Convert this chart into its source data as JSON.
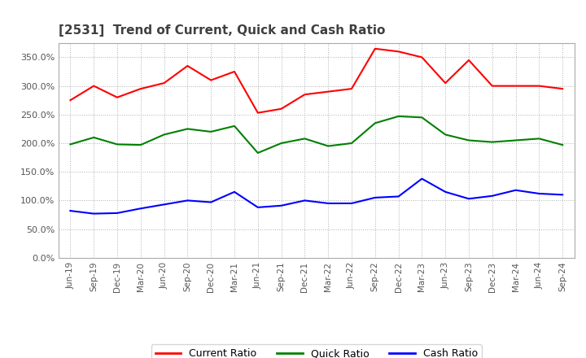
{
  "title": "[2531]  Trend of Current, Quick and Cash Ratio",
  "title_color": "#404040",
  "background_color": "#ffffff",
  "plot_background": "#ffffff",
  "grid_color": "#b0b0b0",
  "x_labels": [
    "Jun-19",
    "Sep-19",
    "Dec-19",
    "Mar-20",
    "Jun-20",
    "Sep-20",
    "Dec-20",
    "Mar-21",
    "Jun-21",
    "Sep-21",
    "Dec-21",
    "Mar-22",
    "Jun-22",
    "Sep-22",
    "Dec-22",
    "Mar-23",
    "Jun-23",
    "Sep-23",
    "Dec-23",
    "Mar-24",
    "Jun-24",
    "Sep-24"
  ],
  "current_ratio": [
    275,
    300,
    280,
    295,
    305,
    335,
    310,
    325,
    253,
    260,
    285,
    290,
    295,
    365,
    360,
    350,
    305,
    345,
    300,
    300,
    300,
    295
  ],
  "quick_ratio": [
    198,
    210,
    198,
    197,
    215,
    225,
    220,
    230,
    183,
    200,
    208,
    195,
    200,
    235,
    247,
    245,
    215,
    205,
    202,
    205,
    208,
    197
  ],
  "cash_ratio": [
    82,
    77,
    78,
    86,
    93,
    100,
    97,
    115,
    88,
    91,
    100,
    95,
    95,
    105,
    107,
    138,
    115,
    103,
    108,
    118,
    112,
    110
  ],
  "current_color": "#ff0000",
  "quick_color": "#008000",
  "cash_color": "#0000ff",
  "ylim": [
    0,
    375
  ],
  "yticks": [
    0,
    50,
    100,
    150,
    200,
    250,
    300,
    350
  ],
  "legend_labels": [
    "Current Ratio",
    "Quick Ratio",
    "Cash Ratio"
  ],
  "line_width": 1.5
}
